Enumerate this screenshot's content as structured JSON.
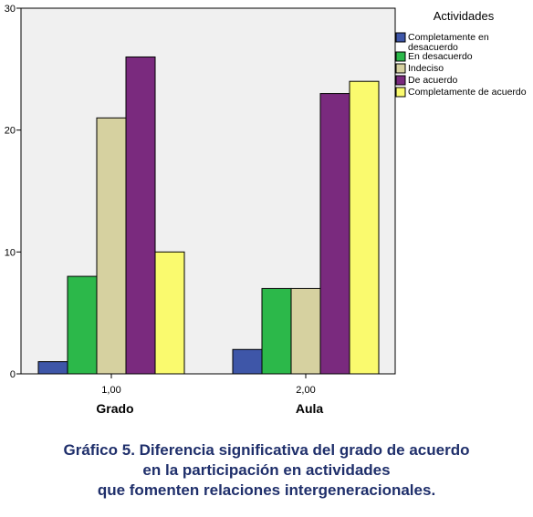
{
  "chart_data": {
    "type": "bar",
    "title": "",
    "xlabel": "",
    "ylabel": "",
    "ylim": [
      0,
      30
    ],
    "yticks": [
      0,
      10,
      20,
      30
    ],
    "grid": false,
    "legend_position": "right",
    "legend_title": "Actividades",
    "categories": [
      "1,00",
      "2,00"
    ],
    "category_names": [
      "Grado",
      "Aula"
    ],
    "series": [
      {
        "name": "Completamente en desacuerdo",
        "name_lines": [
          "Completamente en",
          "desacuerdo"
        ],
        "color": "#3e56a8",
        "values": [
          1,
          2
        ]
      },
      {
        "name": "En desacuerdo",
        "name_lines": [
          "En desacuerdo"
        ],
        "color": "#2cb84a",
        "values": [
          8,
          7
        ]
      },
      {
        "name": "Indeciso",
        "name_lines": [
          "Indeciso"
        ],
        "color": "#d6d1a0",
        "values": [
          21,
          7
        ]
      },
      {
        "name": "De acuerdo",
        "name_lines": [
          "De acuerdo"
        ],
        "color": "#7a2a7e",
        "values": [
          26,
          23
        ]
      },
      {
        "name": "Completamente de acuerdo",
        "name_lines": [
          "Completamente de acuerdo"
        ],
        "color": "#fafa6e",
        "values": [
          10,
          24
        ]
      }
    ],
    "plot_background": "#f0f0f0"
  },
  "caption": {
    "lines": [
      "Gráfico 5. Diferencia significativa del grado de acuerdo",
      "en la participación en actividades",
      "que fomenten relaciones intergeneracionales."
    ]
  }
}
